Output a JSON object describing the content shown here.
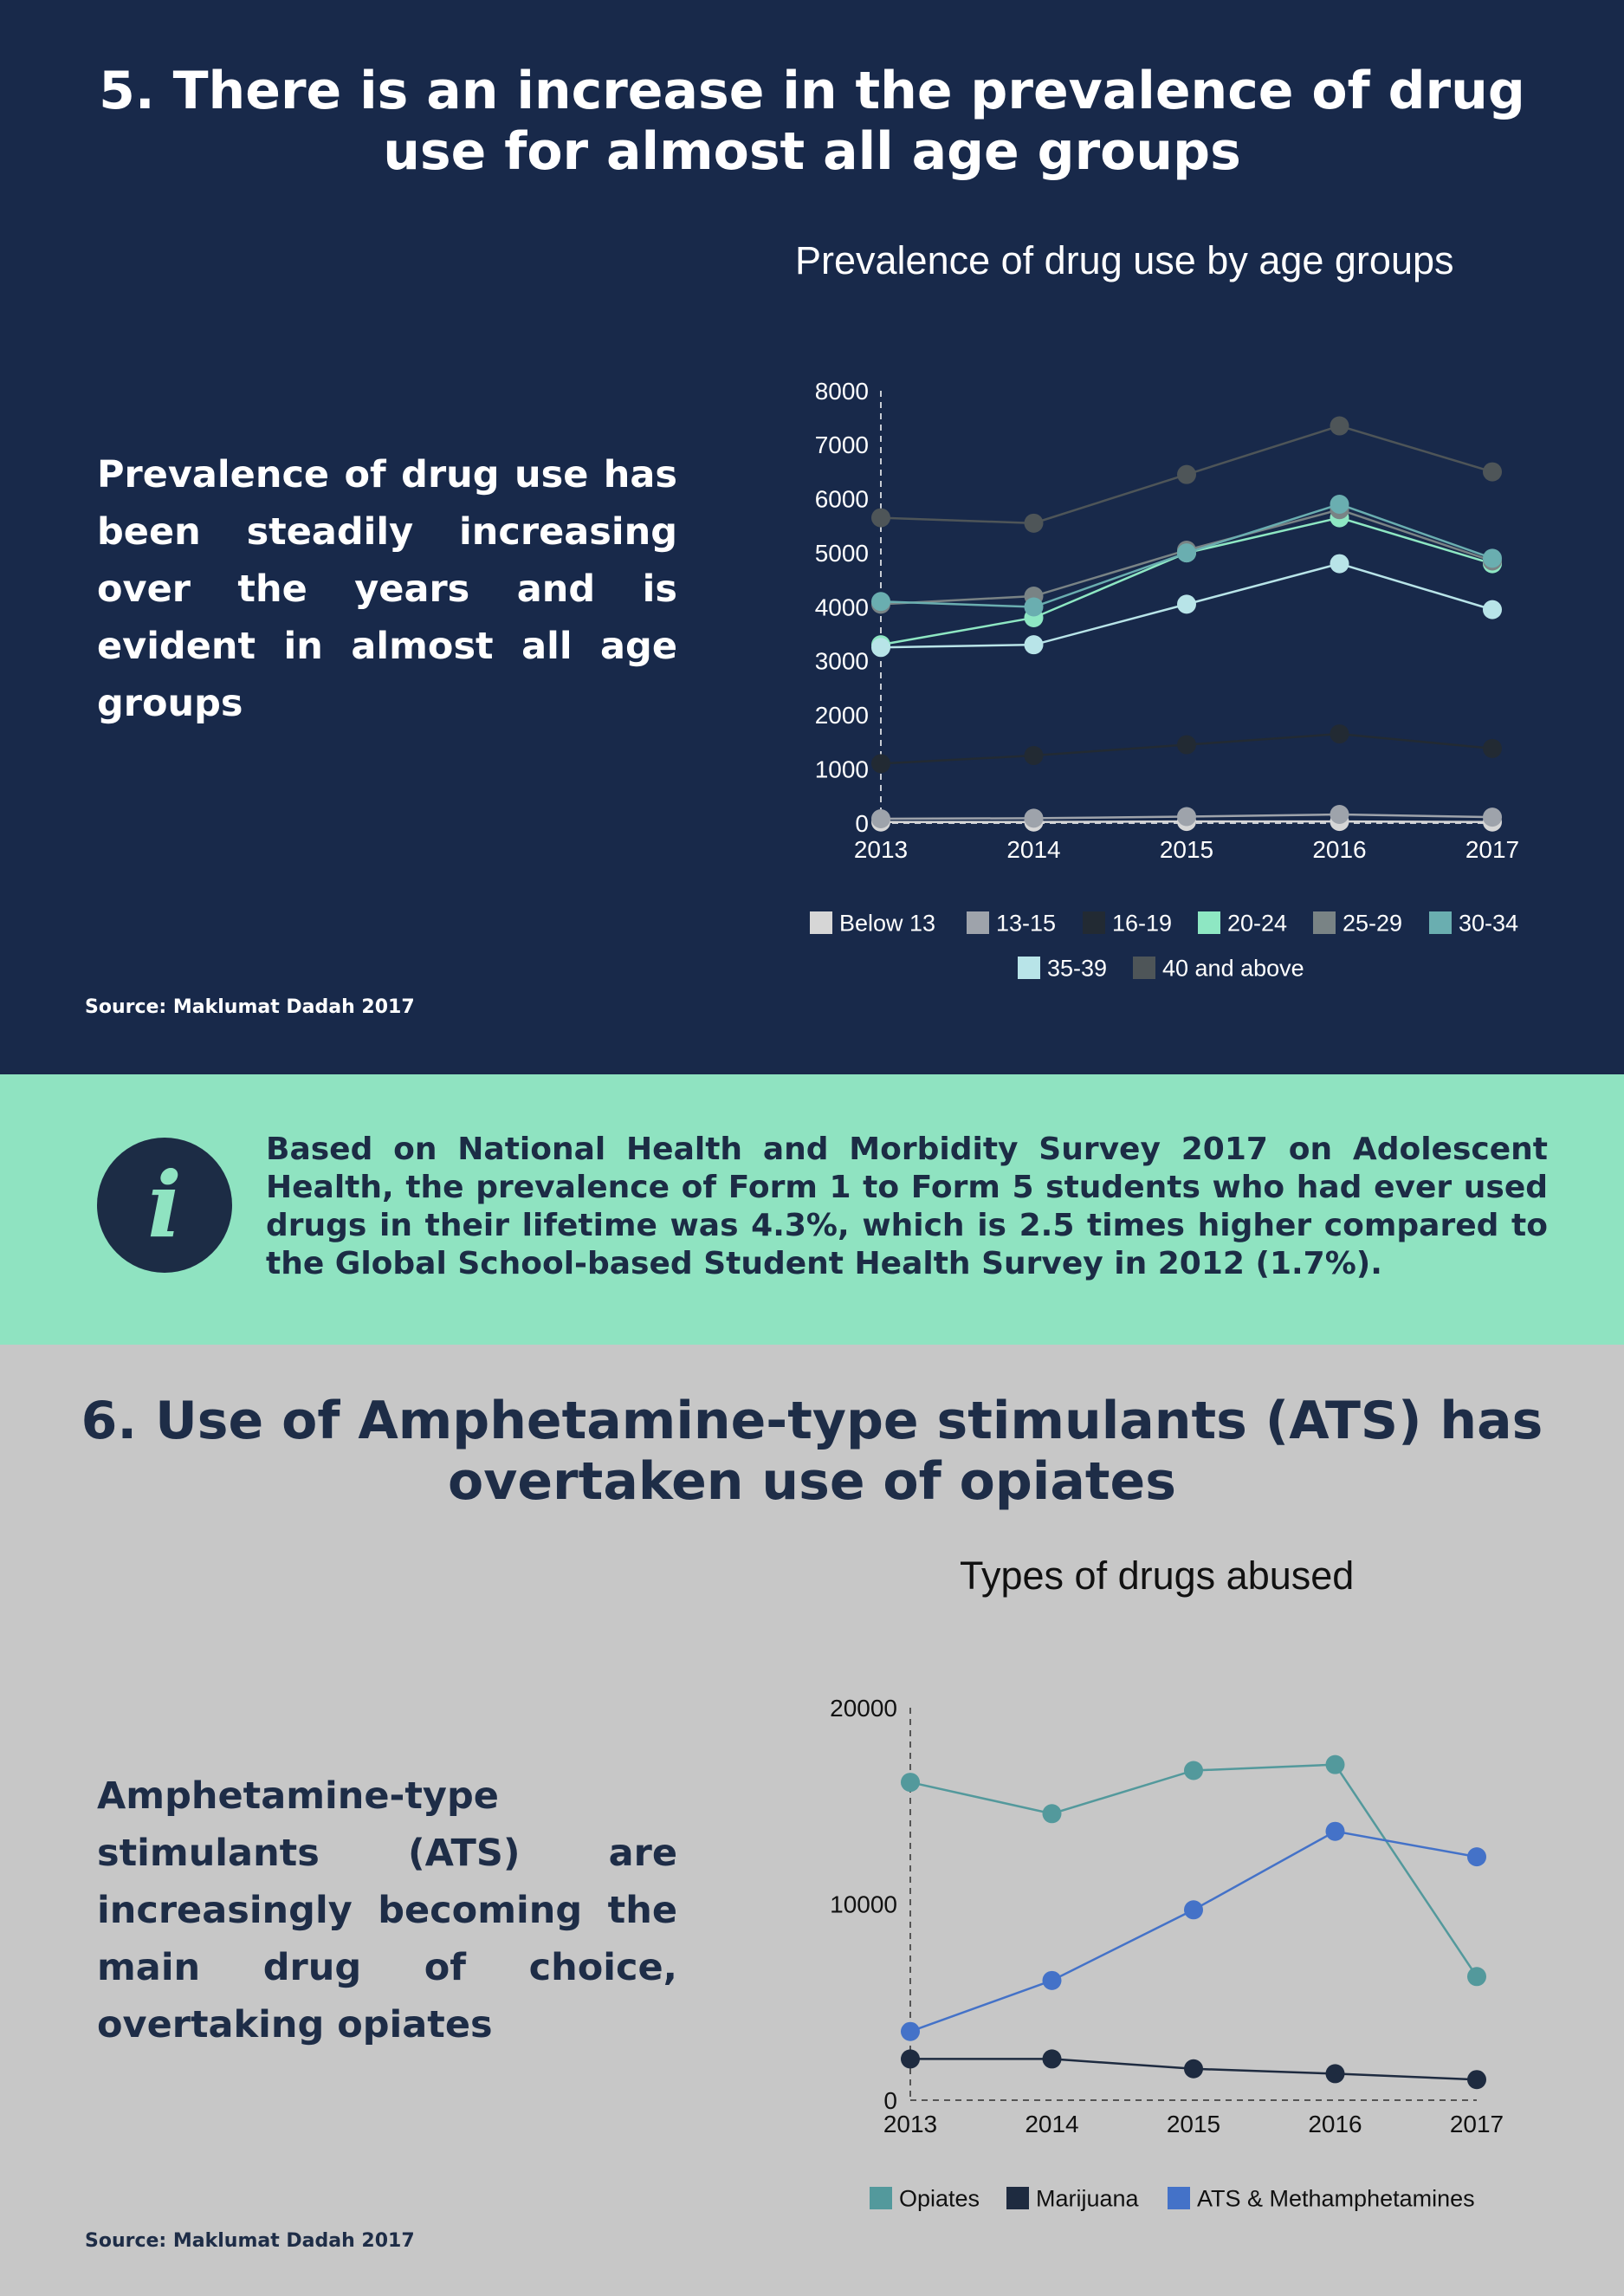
{
  "section5": {
    "heading": "5. There is an increase in the prevalence of drug use for almost all age groups",
    "lead": "Prevalence of drug use has been steadily increasing over the years and is evident in almost all age groups",
    "source": "Source: Maklumat Dadah 2017"
  },
  "info": {
    "icon": "info-icon",
    "glyph": "i",
    "text": "Based on National Health and Morbidity Survey 2017 on Adolescent Health, the prevalence of Form 1 to Form 5 students who had ever used drugs in their lifetime was 4.3%, which is 2.5 times higher compared to the Global School-based Student Health Survey in 2012 (1.7%)."
  },
  "section6": {
    "heading": "6. Use of Amphetamine-type stimulants (ATS) has overtaken use of opiates",
    "lead": "Amphetamine-type stimulants (ATS) are increasingly becoming the main drug of choice, overtaking opiates",
    "source": "Source: Maklumat Dadah 2017"
  },
  "colors": {
    "top_bg": "#18294a",
    "info_bg": "#8fe3c1",
    "bottom_bg": "#c7c7c7",
    "dark_text": "#1e2d47"
  },
  "chart_data": [
    {
      "type": "line",
      "title": "Prevalence of drug use by age groups",
      "x": [
        "2013",
        "2014",
        "2015",
        "2016",
        "2017"
      ],
      "y_ticks": [
        "0",
        "1000",
        "2000",
        "3000",
        "4000",
        "5000",
        "6000",
        "7000",
        "8000"
      ],
      "ylim": [
        0,
        8000
      ],
      "legend_position": "bottom",
      "series": [
        {
          "name": "Below 13",
          "color": "#d6d6d6",
          "values": [
            20,
            20,
            30,
            30,
            20
          ]
        },
        {
          "name": "13-15",
          "color": "#9ea3ab",
          "values": [
            80,
            90,
            120,
            160,
            110
          ]
        },
        {
          "name": "16-19",
          "color": "#222a33",
          "values": [
            1100,
            1250,
            1450,
            1650,
            1380
          ]
        },
        {
          "name": "20-24",
          "color": "#8ee7c3",
          "values": [
            3300,
            3800,
            5000,
            5650,
            4800
          ]
        },
        {
          "name": "25-29",
          "color": "#798385",
          "values": [
            4050,
            4200,
            5050,
            5800,
            4850
          ]
        },
        {
          "name": "30-34",
          "color": "#6aaeb0",
          "values": [
            4100,
            4000,
            5000,
            5900,
            4900
          ]
        },
        {
          "name": "35-39",
          "color": "#b8e4e8",
          "values": [
            3250,
            3300,
            4050,
            4800,
            3950
          ]
        },
        {
          "name": "40 and above",
          "color": "#4e5558",
          "values": [
            5650,
            5550,
            6450,
            7350,
            6500
          ]
        }
      ]
    },
    {
      "type": "line",
      "title": "Types of drugs abused",
      "x": [
        "2013",
        "2014",
        "2015",
        "2016",
        "2017"
      ],
      "y_ticks": [
        "0",
        "10000",
        "20000"
      ],
      "ylim": [
        0,
        20000
      ],
      "legend_position": "bottom",
      "series": [
        {
          "name": "Opiates",
          "color": "#53999c",
          "values": [
            16200,
            14600,
            16800,
            17100,
            6300
          ]
        },
        {
          "name": "Marijuana",
          "color": "#1e2b40",
          "values": [
            2100,
            2100,
            1600,
            1350,
            1050
          ]
        },
        {
          "name": "ATS & Methamphetamines",
          "color": "#4472c8",
          "values": [
            3500,
            6100,
            9700,
            13700,
            12400
          ]
        }
      ]
    }
  ]
}
